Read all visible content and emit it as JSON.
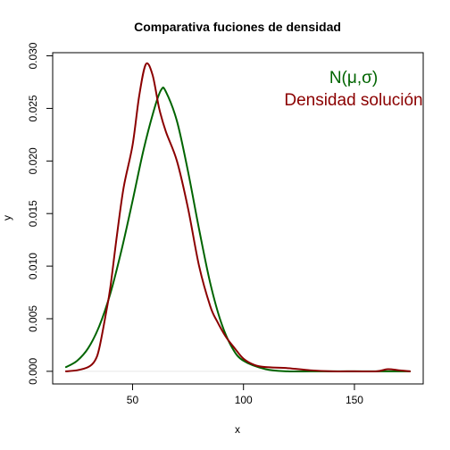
{
  "chart_data": {
    "type": "line",
    "title": "Comparativa fuciones de densidad",
    "xlabel": "x",
    "ylabel": "y",
    "xlim": [
      14,
      181
    ],
    "ylim": [
      -0.0012,
      0.0303
    ],
    "xticks": [
      50,
      100,
      150
    ],
    "yticks": [
      0.0,
      0.005,
      0.01,
      0.015,
      0.02,
      0.025,
      0.03
    ],
    "ytick_labels": [
      "0.000",
      "0.005",
      "0.010",
      "0.015",
      "0.020",
      "0.025",
      "0.030"
    ],
    "grid": false,
    "legend_position": "top-right",
    "colors": {
      "normal": "#006400",
      "solucion": "#8b0000",
      "baseline": "#e6e6e6"
    },
    "series": [
      {
        "name": "N(μ,σ)",
        "color": "#006400",
        "x": [
          20,
          25,
          30,
          35,
          40,
          45,
          50,
          55,
          60,
          63,
          65,
          70,
          75,
          80,
          85,
          90,
          95,
          100,
          110,
          120,
          130,
          140,
          150,
          160,
          175
        ],
        "y": [
          0.0004,
          0.001,
          0.0022,
          0.0043,
          0.0074,
          0.0115,
          0.0162,
          0.0211,
          0.0251,
          0.0268,
          0.0266,
          0.0238,
          0.019,
          0.0135,
          0.0084,
          0.0046,
          0.0022,
          0.001,
          0.0002,
          0.0,
          0.0,
          0.0,
          0.0,
          0.0,
          0.0
        ]
      },
      {
        "name": "Densidad solución",
        "color": "#8b0000",
        "x": [
          20,
          25,
          30,
          33,
          35,
          38,
          40,
          43,
          46,
          50,
          53,
          56,
          59,
          62,
          65,
          70,
          75,
          80,
          85,
          88,
          92,
          96,
          100,
          105,
          110,
          120,
          130,
          140,
          150,
          160,
          165,
          170,
          175
        ],
        "y": [
          0.0,
          0.0001,
          0.0004,
          0.001,
          0.0022,
          0.0055,
          0.008,
          0.013,
          0.0175,
          0.0215,
          0.0262,
          0.0292,
          0.0282,
          0.025,
          0.0228,
          0.02,
          0.0155,
          0.01,
          0.0062,
          0.0048,
          0.0033,
          0.0022,
          0.0012,
          0.0006,
          0.0004,
          0.0003,
          0.0001,
          0.0,
          0.0,
          0.0,
          0.0002,
          0.0001,
          0.0
        ]
      }
    ]
  }
}
